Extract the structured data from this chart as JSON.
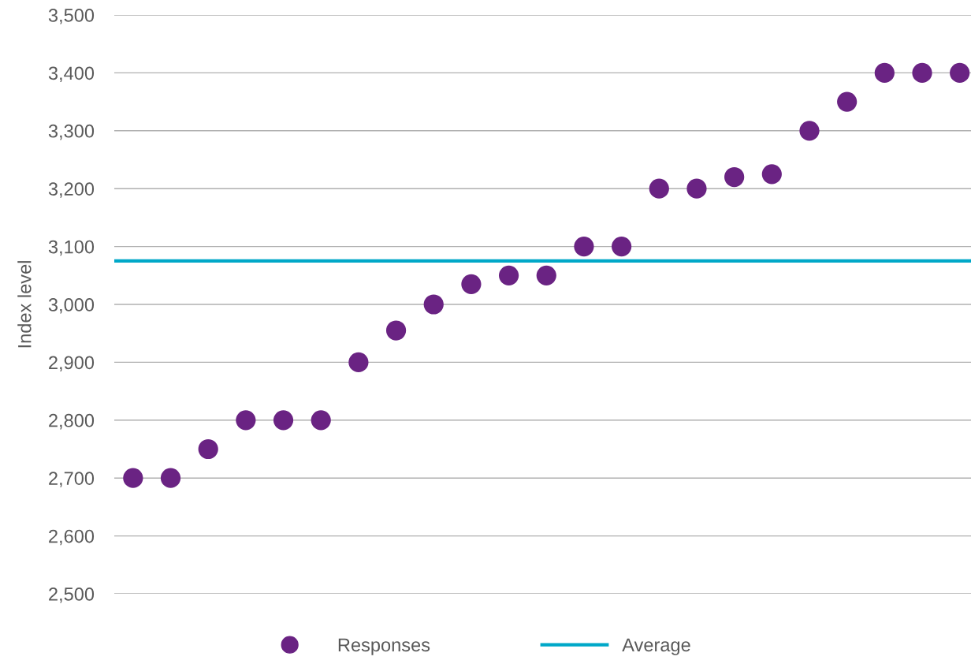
{
  "chart_data": {
    "type": "scatter",
    "ylabel": "Index level",
    "categories": [
      null,
      null,
      null,
      null,
      null,
      null,
      null,
      null,
      null,
      null,
      null,
      null,
      null,
      null,
      null,
      null,
      null,
      null,
      null,
      null,
      null,
      null,
      null
    ],
    "series": [
      {
        "name": "Responses",
        "color": "#6a2383",
        "values": [
          2700,
          2700,
          2750,
          2800,
          2800,
          2800,
          2900,
          2955,
          3000,
          3035,
          3050,
          3050,
          3100,
          3100,
          3200,
          3200,
          3220,
          3225,
          3300,
          3350,
          3400,
          3400,
          3400
        ]
      }
    ],
    "ref_lines": [
      {
        "axis": "y",
        "value": 3075,
        "label": "Average",
        "color": "#00a8c8"
      }
    ],
    "ylim": [
      2500,
      3500
    ],
    "yticks": [
      {
        "value": 2500,
        "label": "2,500"
      },
      {
        "value": 2600,
        "label": "2,600"
      },
      {
        "value": 2700,
        "label": "2,700"
      },
      {
        "value": 2800,
        "label": "2,800"
      },
      {
        "value": 2900,
        "label": "2,900"
      },
      {
        "value": 3000,
        "label": "3,000"
      },
      {
        "value": 3100,
        "label": "3,100"
      },
      {
        "value": 3200,
        "label": "3,200"
      },
      {
        "value": 3300,
        "label": "3,300"
      },
      {
        "value": 3400,
        "label": "3,400"
      },
      {
        "value": 3500,
        "label": "3,500"
      }
    ],
    "grid": "y",
    "legend": "bottom",
    "marker": "circle"
  }
}
